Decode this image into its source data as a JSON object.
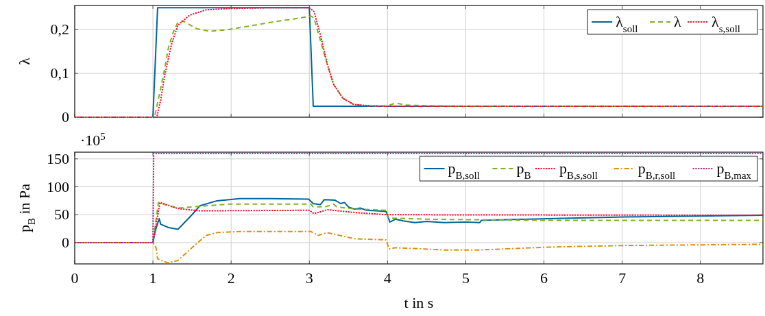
{
  "chart_data": [
    {
      "type": "line",
      "ylabel": "λ",
      "xlim": [
        0,
        8.8
      ],
      "xticks": [
        0,
        1,
        2,
        3,
        4,
        5,
        6,
        7,
        8
      ],
      "ylim": [
        0,
        0.255
      ],
      "yticks": [
        0,
        {
          "value": 0.1,
          "label": "0,1"
        },
        {
          "value": 0.2,
          "label": "0,2"
        }
      ],
      "tick_labels": "y",
      "grid": true,
      "legend": "top right",
      "series": [
        {
          "name": "λ$_{soll}$",
          "color": "#00649b",
          "line_style": "solid",
          "x": [
            0,
            1.0,
            1.06,
            3.0,
            3.05,
            8.8
          ],
          "values": [
            0,
            0,
            0.25,
            0.25,
            0.025,
            0.025
          ]
        },
        {
          "name": "λ",
          "color": "#7fb21e",
          "line_style": "dashed",
          "x": [
            0,
            1.02,
            1.08,
            1.15,
            1.2,
            1.26,
            1.32,
            1.39,
            1.48,
            1.56,
            1.73,
            1.96,
            2.3,
            2.55,
            2.8,
            3.02,
            3.06,
            3.1,
            3.15,
            3.23,
            3.31,
            3.43,
            3.57,
            3.77,
            4.0,
            4.08,
            4.15,
            4.22,
            4.35,
            4.6,
            5.0,
            8.8
          ],
          "values": [
            0,
            0,
            0.05,
            0.11,
            0.16,
            0.194,
            0.217,
            0.219,
            0.21,
            0.202,
            0.196,
            0.2,
            0.21,
            0.218,
            0.224,
            0.231,
            0.226,
            0.2,
            0.17,
            0.12,
            0.075,
            0.043,
            0.029,
            0.026,
            0.026,
            0.031,
            0.031,
            0.028,
            0.027,
            0.026,
            0.025,
            0.025
          ]
        },
        {
          "name": "λ$_{s,soll}$",
          "color": "#ff0a2a",
          "line_style": "dotted",
          "x": [
            0,
            1.05,
            1.1,
            1.15,
            1.24,
            1.32,
            1.47,
            1.68,
            1.96,
            2.5,
            3.0,
            3.06,
            3.14,
            3.23,
            3.31,
            3.43,
            3.57,
            3.77,
            4.0,
            8.8
          ],
          "values": [
            0,
            0,
            0.04,
            0.095,
            0.168,
            0.21,
            0.233,
            0.245,
            0.248,
            0.25,
            0.25,
            0.241,
            0.189,
            0.121,
            0.075,
            0.043,
            0.029,
            0.026,
            0.025,
            0.025
          ]
        }
      ]
    },
    {
      "type": "line",
      "ylabel": "p$_{B}$ in Pa",
      "xlabel": "t in s",
      "annotations": [
        "·10$^{5}$"
      ],
      "xlim": [
        0,
        8.8
      ],
      "xticks": [
        0,
        1,
        2,
        3,
        4,
        5,
        6,
        7,
        8
      ],
      "ylim": [
        -38,
        162
      ],
      "yticks": [
        0,
        50,
        100,
        150
      ],
      "grid": true,
      "legend": "top right",
      "series": [
        {
          "name": "p$_{B,soll}$",
          "color": "#00649b",
          "line_style": "solid",
          "x": [
            0,
            1.0,
            1.03,
            1.08,
            1.1,
            1.2,
            1.32,
            1.5,
            1.6,
            1.82,
            2.11,
            2.5,
            2.99,
            3.05,
            3.14,
            3.19,
            3.33,
            3.4,
            3.45,
            3.5,
            3.58,
            3.65,
            3.73,
            3.85,
            3.98,
            4.03,
            4.1,
            4.2,
            4.35,
            4.5,
            4.72,
            5.0,
            5.18,
            5.2,
            6.05,
            7.03,
            8.8
          ],
          "values": [
            0,
            0,
            21,
            43,
            33,
            27,
            24,
            50,
            66,
            75,
            79,
            79,
            78,
            70,
            68,
            77,
            76,
            70,
            72,
            64,
            60,
            62,
            58,
            57,
            56,
            37,
            42,
            39,
            36,
            38,
            36,
            37,
            36,
            40,
            43,
            46,
            49
          ]
        },
        {
          "name": "p$_{B}$",
          "color": "#7fb21e",
          "line_style": "dashed",
          "x": [
            0,
            1.0,
            1.07,
            1.2,
            1.32,
            1.6,
            1.96,
            3.02,
            3.05,
            3.2,
            3.31,
            3.35,
            3.6,
            3.98,
            4.0,
            4.05,
            4.5,
            5.18,
            6,
            8.8
          ],
          "values": [
            0,
            0,
            72,
            66,
            62,
            65,
            69,
            69,
            64,
            64,
            69,
            64,
            60,
            58,
            46,
            44,
            42,
            41,
            40,
            40
          ]
        },
        {
          "name": "p$_{B,s,soll}$",
          "color": "#ff0a2a",
          "line_style": "dotted",
          "x": [
            0,
            1.0,
            1.09,
            1.32,
            1.6,
            3.0,
            3.06,
            3.23,
            3.58,
            4.0,
            8.8
          ],
          "values": [
            0,
            0,
            72,
            61,
            57,
            58,
            52,
            59,
            54,
            50,
            49
          ]
        },
        {
          "name": "p$_{B,r,soll}$",
          "color": "#dd8f0a",
          "line_style": "dashdot",
          "x": [
            0,
            1.0,
            1.04,
            1.06,
            1.19,
            1.32,
            1.5,
            1.68,
            1.82,
            2.1,
            3.02,
            3.11,
            3.23,
            3.58,
            3.98,
            4.02,
            4.1,
            4.72,
            5.18,
            6.05,
            7.03,
            8.8
          ],
          "values": [
            0,
            0,
            -9,
            -29,
            -36,
            -32,
            -9,
            13,
            18,
            20,
            20,
            13,
            18,
            7,
            5,
            -11,
            -9,
            -13,
            -13,
            -8,
            -5,
            -3
          ]
        },
        {
          "name": "p$_{B,max}$",
          "color": "#a32a7e",
          "line_style": "dotted",
          "x": [
            0,
            1.0,
            1.01,
            8.8
          ],
          "values": [
            0,
            0,
            160,
            160
          ]
        }
      ]
    }
  ]
}
